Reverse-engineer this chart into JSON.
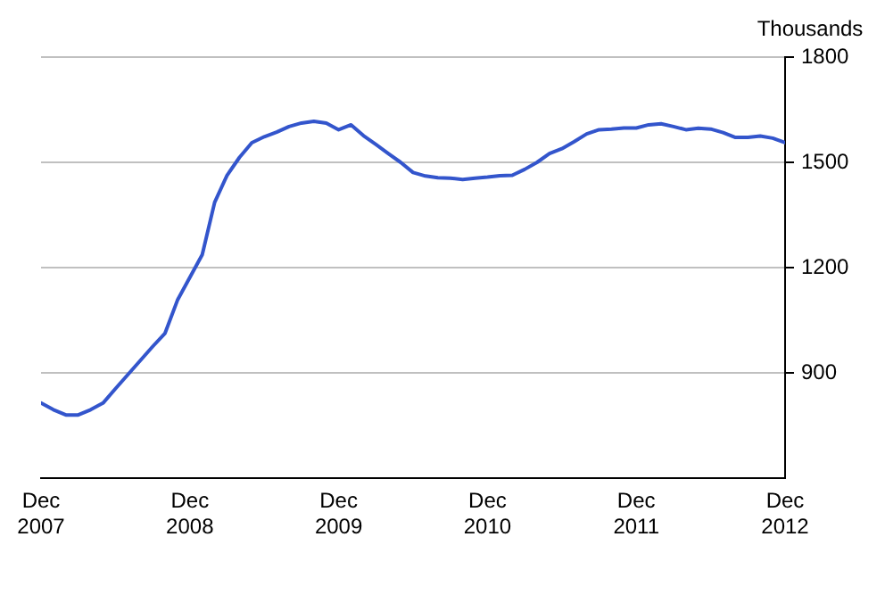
{
  "chart_data": {
    "type": "line",
    "ylabel": "Thousands",
    "xlim": [
      "2007-12",
      "2012-12"
    ],
    "xticks": [
      {
        "value": "2007-12",
        "label": "Dec 2007"
      },
      {
        "value": "2008-12",
        "label": "Dec 2008"
      },
      {
        "value": "2009-12",
        "label": "Dec 2009"
      },
      {
        "value": "2010-12",
        "label": "Dec 2010"
      },
      {
        "value": "2011-12",
        "label": "Dec 2011"
      },
      {
        "value": "2012-12",
        "label": "Dec 2012"
      }
    ],
    "ylim": [
      600,
      1800
    ],
    "yticks": [
      900,
      1200,
      1500,
      1800
    ],
    "grid": "y",
    "marker": "none",
    "line_style": "solid",
    "x": [
      "2007-12",
      "2008-01",
      "2008-02",
      "2008-03",
      "2008-04",
      "2008-05",
      "2008-06",
      "2008-07",
      "2008-08",
      "2008-09",
      "2008-10",
      "2008-11",
      "2008-12",
      "2009-01",
      "2009-02",
      "2009-03",
      "2009-04",
      "2009-05",
      "2009-06",
      "2009-07",
      "2009-08",
      "2009-09",
      "2009-10",
      "2009-11",
      "2009-12",
      "2010-01",
      "2010-02",
      "2010-03",
      "2010-04",
      "2010-05",
      "2010-06",
      "2010-07",
      "2010-08",
      "2010-09",
      "2010-10",
      "2010-11",
      "2010-12",
      "2011-01",
      "2011-02",
      "2011-03",
      "2011-04",
      "2011-05",
      "2011-06",
      "2011-07",
      "2011-08",
      "2011-09",
      "2011-10",
      "2011-11",
      "2011-12",
      "2012-01",
      "2012-02",
      "2012-03",
      "2012-04",
      "2012-05",
      "2012-06",
      "2012-07",
      "2012-08",
      "2012-09",
      "2012-10",
      "2012-11",
      "2012-12"
    ],
    "series": [
      {
        "color": "#3355cc",
        "values": [
          814,
          795,
          780,
          780,
          795,
          814,
          855,
          895,
          935,
          975,
          1013,
          1107,
          1172,
          1237,
          1386,
          1463,
          1514,
          1556,
          1573,
          1586,
          1602,
          1612,
          1617,
          1612,
          1593,
          1607,
          1576,
          1551,
          1525,
          1500,
          1471,
          1461,
          1456,
          1455,
          1451,
          1455,
          1458,
          1462,
          1463,
          1480,
          1500,
          1525,
          1539,
          1559,
          1581,
          1593,
          1595,
          1598,
          1598,
          1607,
          1610,
          1602,
          1593,
          1597,
          1595,
          1585,
          1571,
          1571,
          1575,
          1569,
          1556
        ]
      }
    ]
  }
}
